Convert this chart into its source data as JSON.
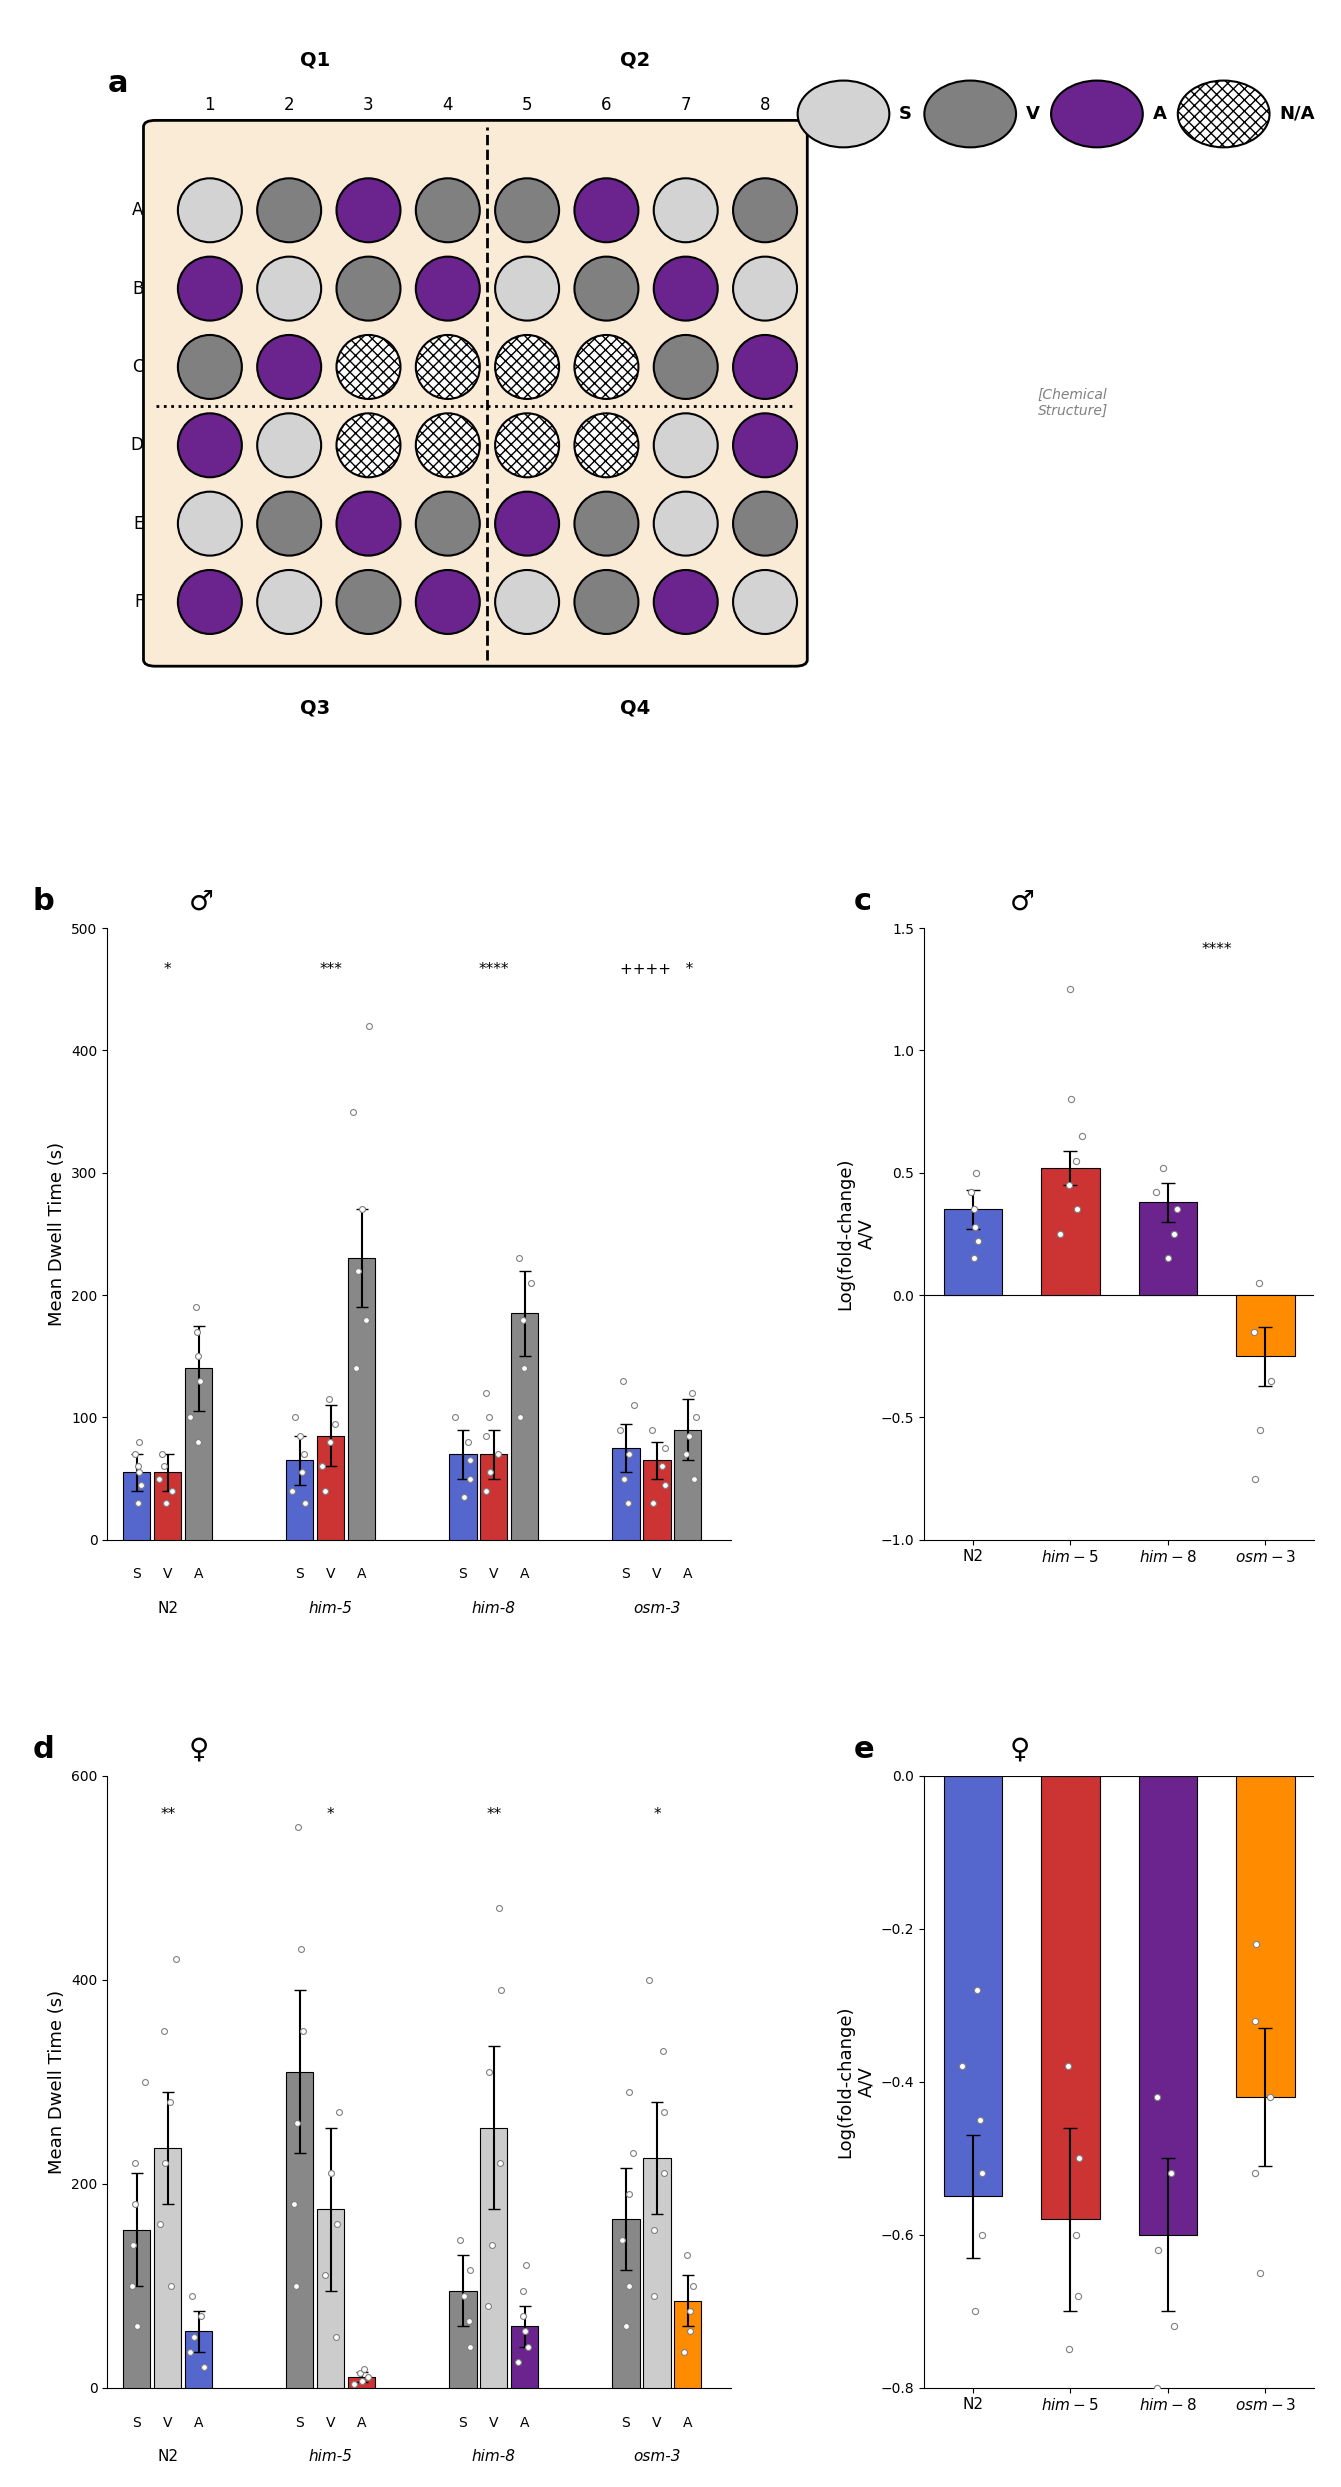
{
  "panel_a": {
    "rows": [
      "A",
      "B",
      "C",
      "D",
      "E",
      "F"
    ],
    "cols": [
      1,
      2,
      3,
      4,
      5,
      6,
      7,
      8
    ],
    "bg_color": "#FAEBD7",
    "grid": [
      [
        "S",
        "V",
        "A",
        "V",
        "V",
        "A",
        "S",
        "V"
      ],
      [
        "A",
        "S",
        "V",
        "A",
        "S",
        "V",
        "A",
        "S"
      ],
      [
        "V",
        "A",
        "N",
        "N",
        "N",
        "N",
        "V",
        "A"
      ],
      [
        "A",
        "S",
        "N",
        "N",
        "N",
        "N",
        "S",
        "A"
      ],
      [
        "S",
        "V",
        "A",
        "V",
        "A",
        "V",
        "S",
        "V"
      ],
      [
        "A",
        "S",
        "V",
        "A",
        "S",
        "V",
        "A",
        "S"
      ]
    ],
    "colors": {
      "S": "#D3D3D3",
      "V": "#808080",
      "A": "#6B238E",
      "N": "#FFFFFF"
    }
  },
  "panel_b": {
    "ylabel": "Mean Dwell Time (s)",
    "ylim": [
      0,
      500
    ],
    "yticks": [
      0,
      100,
      200,
      300,
      400,
      500
    ],
    "groups": [
      "N2",
      "him-5",
      "him-8",
      "osm-3"
    ],
    "conditions": [
      "S",
      "V",
      "A"
    ],
    "bar_colors_b": {
      "S": "#5566CC",
      "V": "#CC3333",
      "A": "#888888"
    },
    "significance": [
      "*",
      "***",
      "****",
      "++++   *"
    ],
    "bars": {
      "N2": {
        "S": 55,
        "V": 55,
        "A": 140
      },
      "him-5": {
        "S": 65,
        "V": 85,
        "A": 230
      },
      "him-8": {
        "S": 70,
        "V": 70,
        "A": 185
      },
      "osm-3": {
        "S": 75,
        "V": 65,
        "A": 90
      }
    },
    "errors": {
      "N2": {
        "S": 15,
        "V": 15,
        "A": 35
      },
      "him-5": {
        "S": 20,
        "V": 25,
        "A": 40
      },
      "him-8": {
        "S": 20,
        "V": 20,
        "A": 35
      },
      "osm-3": {
        "S": 20,
        "V": 15,
        "A": 25
      }
    },
    "scatter_points": {
      "N2_S": [
        30,
        45,
        55,
        60,
        70,
        80
      ],
      "N2_V": [
        30,
        40,
        50,
        60,
        70
      ],
      "N2_A": [
        80,
        100,
        130,
        150,
        170,
        190
      ],
      "him-5_S": [
        30,
        40,
        55,
        70,
        85,
        100
      ],
      "him-5_V": [
        40,
        60,
        80,
        95,
        115
      ],
      "him-5_A": [
        140,
        180,
        220,
        270,
        350,
        420
      ],
      "him-8_S": [
        35,
        50,
        65,
        80,
        100
      ],
      "him-8_V": [
        40,
        55,
        70,
        85,
        100,
        120
      ],
      "him-8_A": [
        100,
        140,
        180,
        210,
        230
      ],
      "osm-3_S": [
        30,
        50,
        70,
        90,
        110,
        130
      ],
      "osm-3_V": [
        30,
        45,
        60,
        75,
        90
      ],
      "osm-3_A": [
        50,
        70,
        85,
        100,
        120
      ]
    }
  },
  "panel_c": {
    "ylabel": "Log(fold-change)\nA/V",
    "ylim": [
      -1.0,
      1.5
    ],
    "yticks": [
      -1.0,
      -0.5,
      0.0,
      0.5,
      1.0,
      1.5
    ],
    "groups": [
      "N2",
      "him-5",
      "him-8",
      "osm-3"
    ],
    "bar_colors": [
      "#5566CC",
      "#CC3333",
      "#6B238E",
      "#FF8C00"
    ],
    "significance": "****",
    "bars": [
      0.35,
      0.52,
      0.38,
      -0.25
    ],
    "errors": [
      0.08,
      0.07,
      0.08,
      0.12
    ],
    "scatter_points": {
      "N2": [
        0.15,
        0.22,
        0.28,
        0.35,
        0.42,
        0.5
      ],
      "him-5": [
        0.25,
        0.35,
        0.45,
        0.55,
        0.65,
        0.8,
        1.25
      ],
      "him-8": [
        0.15,
        0.25,
        0.35,
        0.42,
        0.52
      ],
      "osm-3": [
        -0.75,
        -0.55,
        -0.35,
        -0.15,
        0.05
      ]
    }
  },
  "panel_d": {
    "ylabel": "Mean Dwell Time (s)",
    "ylim": [
      0,
      600
    ],
    "yticks": [
      0,
      200,
      400,
      600
    ],
    "groups": [
      "N2",
      "him-5",
      "him-8",
      "osm-3"
    ],
    "conditions": [
      "S",
      "V",
      "A"
    ],
    "significance": [
      "**",
      "*",
      "**",
      "*"
    ],
    "bars": {
      "N2": {
        "S": 155,
        "V": 235,
        "A": 55
      },
      "him-5": {
        "S": 310,
        "V": 175,
        "A": 10
      },
      "him-8": {
        "S": 95,
        "V": 255,
        "A": 60
      },
      "osm-3": {
        "S": 165,
        "V": 225,
        "A": 85
      }
    },
    "errors": {
      "N2": {
        "S": 55,
        "V": 55,
        "A": 20
      },
      "him-5": {
        "S": 80,
        "V": 80,
        "A": 5
      },
      "him-8": {
        "S": 35,
        "V": 80,
        "A": 20
      },
      "osm-3": {
        "S": 50,
        "V": 55,
        "A": 25
      }
    },
    "scatter_points": {
      "N2_S": [
        60,
        100,
        140,
        180,
        220,
        300
      ],
      "N2_V": [
        100,
        160,
        220,
        280,
        350,
        420
      ],
      "N2_A": [
        20,
        35,
        50,
        70,
        90
      ],
      "him-5_S": [
        100,
        180,
        260,
        350,
        430,
        550
      ],
      "him-5_V": [
        50,
        110,
        160,
        210,
        270
      ],
      "him-5_A": [
        3,
        6,
        10,
        14,
        18
      ],
      "him-8_S": [
        40,
        65,
        90,
        115,
        145
      ],
      "him-8_V": [
        80,
        140,
        220,
        310,
        390,
        470
      ],
      "him-8_A": [
        25,
        40,
        55,
        70,
        95,
        120
      ],
      "osm-3_S": [
        60,
        100,
        145,
        190,
        230,
        290
      ],
      "osm-3_V": [
        90,
        155,
        210,
        270,
        330,
        400
      ],
      "osm-3_A": [
        35,
        55,
        75,
        100,
        130
      ]
    }
  },
  "panel_e": {
    "ylabel": "Log(fold-change)\nA/V",
    "ylim": [
      -0.8,
      0.0
    ],
    "yticks": [
      -0.8,
      -0.6,
      -0.4,
      -0.2,
      0.0
    ],
    "groups": [
      "N2",
      "him-5",
      "him-8",
      "osm-3"
    ],
    "bar_colors": [
      "#5566CC",
      "#CC3333",
      "#6B238E",
      "#FF8C00"
    ],
    "bars": [
      -0.55,
      -0.58,
      -0.6,
      -0.42
    ],
    "errors": [
      0.08,
      0.12,
      0.1,
      0.09
    ],
    "scatter_points": {
      "N2": [
        -0.7,
        -0.6,
        -0.52,
        -0.45,
        -0.38,
        -0.28
      ],
      "him-5": [
        -0.75,
        -0.68,
        -0.6,
        -0.5,
        -0.38
      ],
      "him-8": [
        -0.8,
        -0.72,
        -0.62,
        -0.52,
        -0.42
      ],
      "osm-3": [
        -0.65,
        -0.52,
        -0.42,
        -0.32,
        -0.22
      ]
    }
  }
}
